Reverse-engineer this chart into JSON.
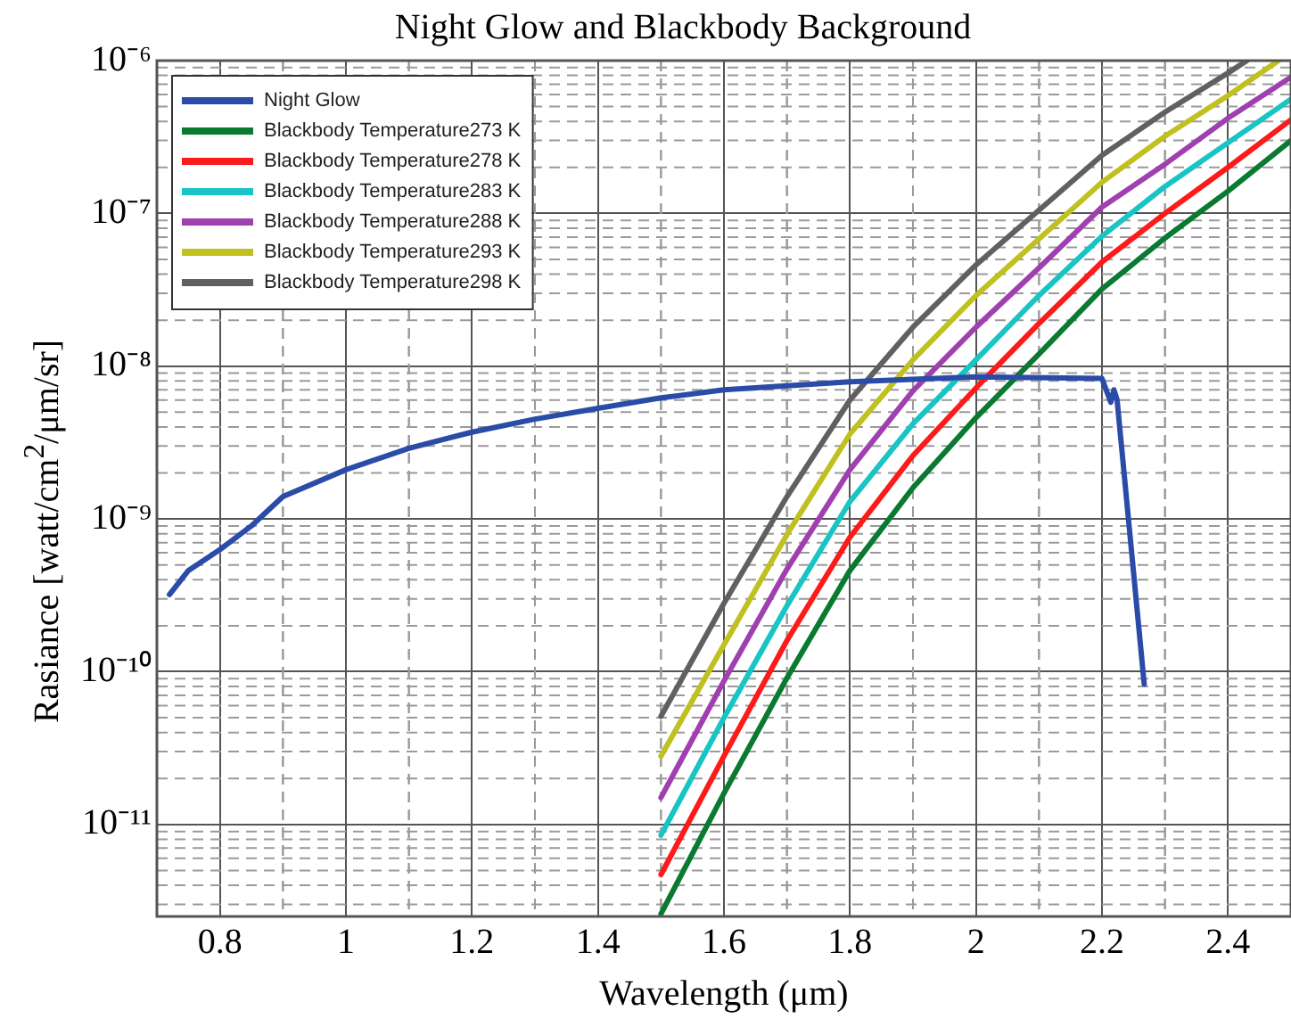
{
  "chart_data": {
    "type": "line",
    "title": "Night Glow and Blackbody Background",
    "xlabel": "Wavelength (μm)",
    "ylabel": "Rasiance [watt/cm$^{2}$/μm/sr]",
    "log": "y",
    "grid": true,
    "legend": "top left",
    "marker": "none",
    "line_style": "solid",
    "xlim": [
      0.7,
      2.5
    ],
    "xticks": [
      0.8,
      1,
      1.2,
      1.4,
      1.6,
      1.8,
      2,
      2.2,
      2.4
    ],
    "ylim": [
      2.5e-12,
      1e-06
    ],
    "yticks": [
      {
        "value": 1e-11,
        "label": "10⁻¹¹"
      },
      {
        "value": 1e-10,
        "label": "10⁻¹⁰"
      },
      {
        "value": 1e-09,
        "label": "10⁻⁹"
      },
      {
        "value": 1e-08,
        "label": "10⁻⁸"
      },
      {
        "value": 1e-07,
        "label": "10⁻⁷"
      },
      {
        "value": 1e-06,
        "label": "10⁻⁶"
      }
    ],
    "series": [
      {
        "name": "Night Glow",
        "color": "#2b4ba8",
        "x": [
          0.72,
          0.75,
          0.8,
          0.85,
          0.9,
          1.0,
          1.1,
          1.2,
          1.3,
          1.4,
          1.5,
          1.6,
          1.8,
          2.0,
          2.2,
          2.214,
          2.219,
          2.224,
          2.267
        ],
        "values": [
          3.2e-10,
          4.6e-10,
          6.3e-10,
          9e-10,
          1.4e-09,
          2.1e-09,
          2.9e-09,
          3.7e-09,
          4.5e-09,
          5.3e-09,
          6.2e-09,
          7e-09,
          7.9e-09,
          8.5e-09,
          8.3e-09,
          5.8e-09,
          7e-09,
          6e-09,
          8.3e-11
        ]
      },
      {
        "name": "Blackbody Temperature273 K",
        "color": "#0a7a30",
        "x": [
          1.5,
          1.6,
          1.7,
          1.8,
          1.9,
          2.0,
          2.1,
          2.2,
          2.3,
          2.4,
          2.5
        ],
        "values": [
          2.6e-12,
          1.6e-11,
          9.1e-11,
          4.6e-10,
          1.6e-09,
          4.6e-09,
          1.2e-08,
          3.2e-08,
          6.9e-08,
          1.4e-07,
          3e-07
        ]
      },
      {
        "name": "Blackbody Temperature278 K",
        "color": "#ff1a1a",
        "x": [
          1.5,
          1.6,
          1.7,
          1.8,
          1.9,
          2.0,
          2.1,
          2.2,
          2.3,
          2.4,
          2.5
        ],
        "values": [
          4.7e-12,
          2.8e-11,
          1.6e-10,
          7.6e-10,
          2.6e-09,
          7.2e-09,
          1.9e-08,
          4.8e-08,
          1e-07,
          2e-07,
          4.1e-07
        ]
      },
      {
        "name": "Blackbody Temperature283 K",
        "color": "#18c4c4",
        "x": [
          1.5,
          1.6,
          1.7,
          1.8,
          1.9,
          2.0,
          2.1,
          2.2,
          2.3,
          2.4,
          2.5
        ],
        "values": [
          8.5e-12,
          5e-11,
          2.7e-10,
          1.3e-09,
          4.2e-09,
          1.1e-08,
          2.9e-08,
          7.1e-08,
          1.5e-07,
          2.9e-07,
          5.6e-07
        ]
      },
      {
        "name": "Blackbody Temperature288 K",
        "color": "#a040b0",
        "x": [
          1.5,
          1.6,
          1.7,
          1.8,
          1.9,
          2.0,
          2.1,
          2.2,
          2.3,
          2.4,
          2.5
        ],
        "values": [
          1.5e-11,
          8.7e-11,
          4.7e-10,
          2.1e-09,
          6.9e-09,
          1.8e-08,
          4.4e-08,
          1.1e-07,
          2.1e-07,
          4.2e-07,
          7.8e-07
        ]
      },
      {
        "name": "Blackbody Temperature293 K",
        "color": "#c0c020",
        "x": [
          1.5,
          1.6,
          1.7,
          1.8,
          1.9,
          2.0,
          2.1,
          2.2,
          2.3,
          2.4,
          2.48
        ],
        "values": [
          2.8e-11,
          1.5e-10,
          7.9e-10,
          3.6e-09,
          1.1e-08,
          2.9e-08,
          6.8e-08,
          1.6e-07,
          3.2e-07,
          5.9e-07,
          1e-06
        ]
      },
      {
        "name": "Blackbody Temperature298 K",
        "color": "#606060",
        "x": [
          1.5,
          1.6,
          1.7,
          1.8,
          1.9,
          2.0,
          2.1,
          2.2,
          2.3,
          2.4,
          2.43
        ],
        "values": [
          5.1e-11,
          2.8e-10,
          1.4e-09,
          6e-09,
          1.8e-08,
          4.6e-08,
          1.05e-07,
          2.4e-07,
          4.6e-07,
          8.3e-07,
          1e-06
        ]
      }
    ]
  }
}
